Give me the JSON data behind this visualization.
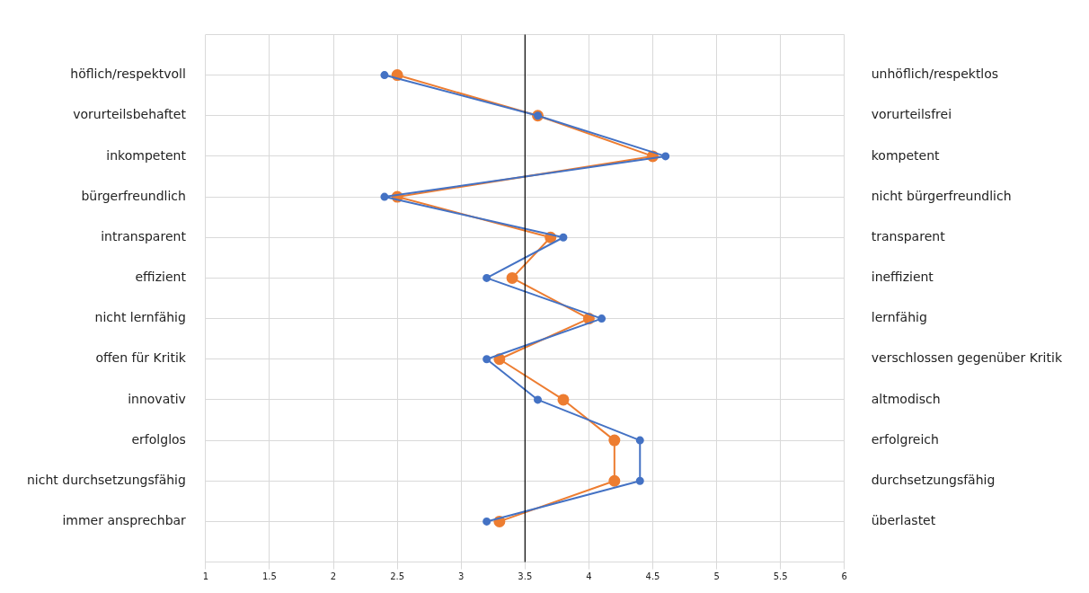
{
  "chart_data": {
    "type": "line",
    "orientation": "horizontal",
    "categories": [
      "höflich/respektvoll",
      "vorurteilsbehaftet",
      "inkompetent",
      "bürgerfreundlich",
      "intransparent",
      "effizient",
      "nicht lernfähig",
      "offen für Kritik",
      "innovativ",
      "erfolglos",
      "nicht durchsetzungsfähig",
      "immer ansprechbar"
    ],
    "y2_categories": [
      "unhöflich/respektlos",
      "vorurteilsfrei",
      "kompetent",
      "nicht bürgerfreundlich",
      "transparent",
      "ineffizient",
      "lernfähig",
      "verschlossen gegenüber Kritik",
      "altmodisch",
      "erfolgreich",
      "durchsetzungsfähig",
      "überlastet"
    ],
    "series": [
      {
        "color": "#4472c4",
        "values": [
          2.4,
          3.6,
          4.6,
          2.4,
          3.8,
          3.2,
          4.1,
          3.2,
          3.6,
          4.4,
          4.4,
          3.2
        ]
      },
      {
        "color": "#ed7d31",
        "values": [
          2.5,
          3.6,
          4.5,
          2.5,
          3.7,
          3.4,
          4.0,
          3.3,
          3.8,
          4.2,
          4.2,
          3.3
        ]
      }
    ],
    "xlim": [
      1,
      6
    ],
    "xticks": [
      1,
      1.5,
      2,
      2.5,
      3,
      3.5,
      4,
      4.5,
      5,
      5.5,
      6
    ],
    "ref_lines": [
      {
        "axis": "x",
        "value": 3.5,
        "color": "#000000"
      }
    ],
    "grid": true,
    "marker": "circle",
    "line_style": "solid",
    "legend": false
  }
}
